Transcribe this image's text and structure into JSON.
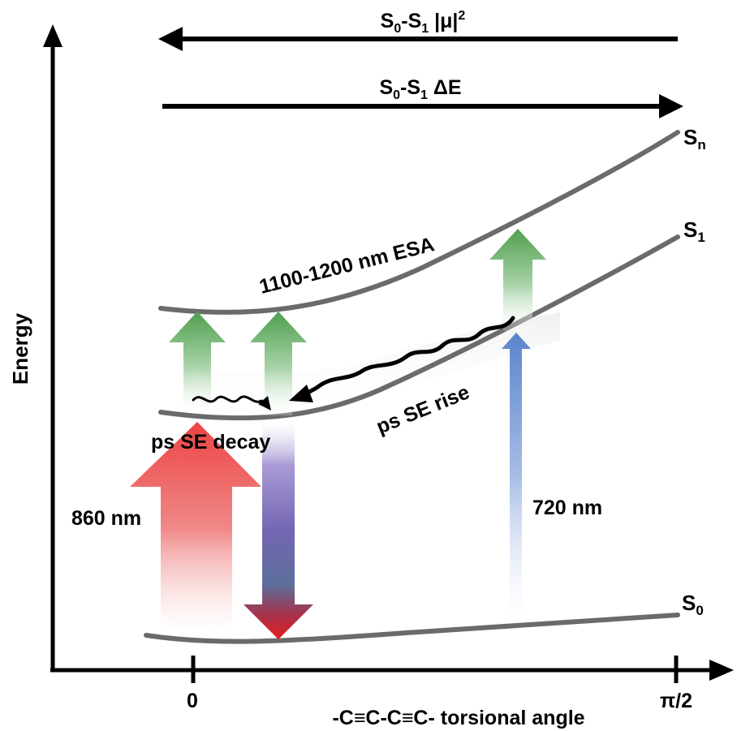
{
  "y_axis_label": "Energy",
  "x_axis_label": "-C≡C-C≡C- torsional angle",
  "x_ticks": [
    "0",
    "π/2"
  ],
  "top_arrow_dipole": {
    "base": "S",
    "sub0": "0",
    "dash": "-S",
    "sub1": "1",
    "rest": " |μ|",
    "sup": "2"
  },
  "top_arrow_energy": {
    "base": "S",
    "sub0": "0",
    "dash": "-S",
    "sub1": "1",
    "rest": " ΔE"
  },
  "states": {
    "sn": {
      "base": "S",
      "sub": "n"
    },
    "s1": {
      "base": "S",
      "sub": "1"
    },
    "s0": {
      "base": "S",
      "sub": "0"
    }
  },
  "annotations": {
    "esa": "1100-1200 nm ESA",
    "se_rise": "ps SE rise",
    "se_decay": "ps SE decay",
    "pump_860": "860 nm",
    "pump_720": "720 nm"
  },
  "colors": {
    "curve": "#6e6e6e",
    "esa_green": "#5aa85a",
    "pump_red": "#ee4a4a",
    "pump_blue": "#5b85cc",
    "se_purple": "#8a78c4",
    "se_red": "#d42020"
  }
}
